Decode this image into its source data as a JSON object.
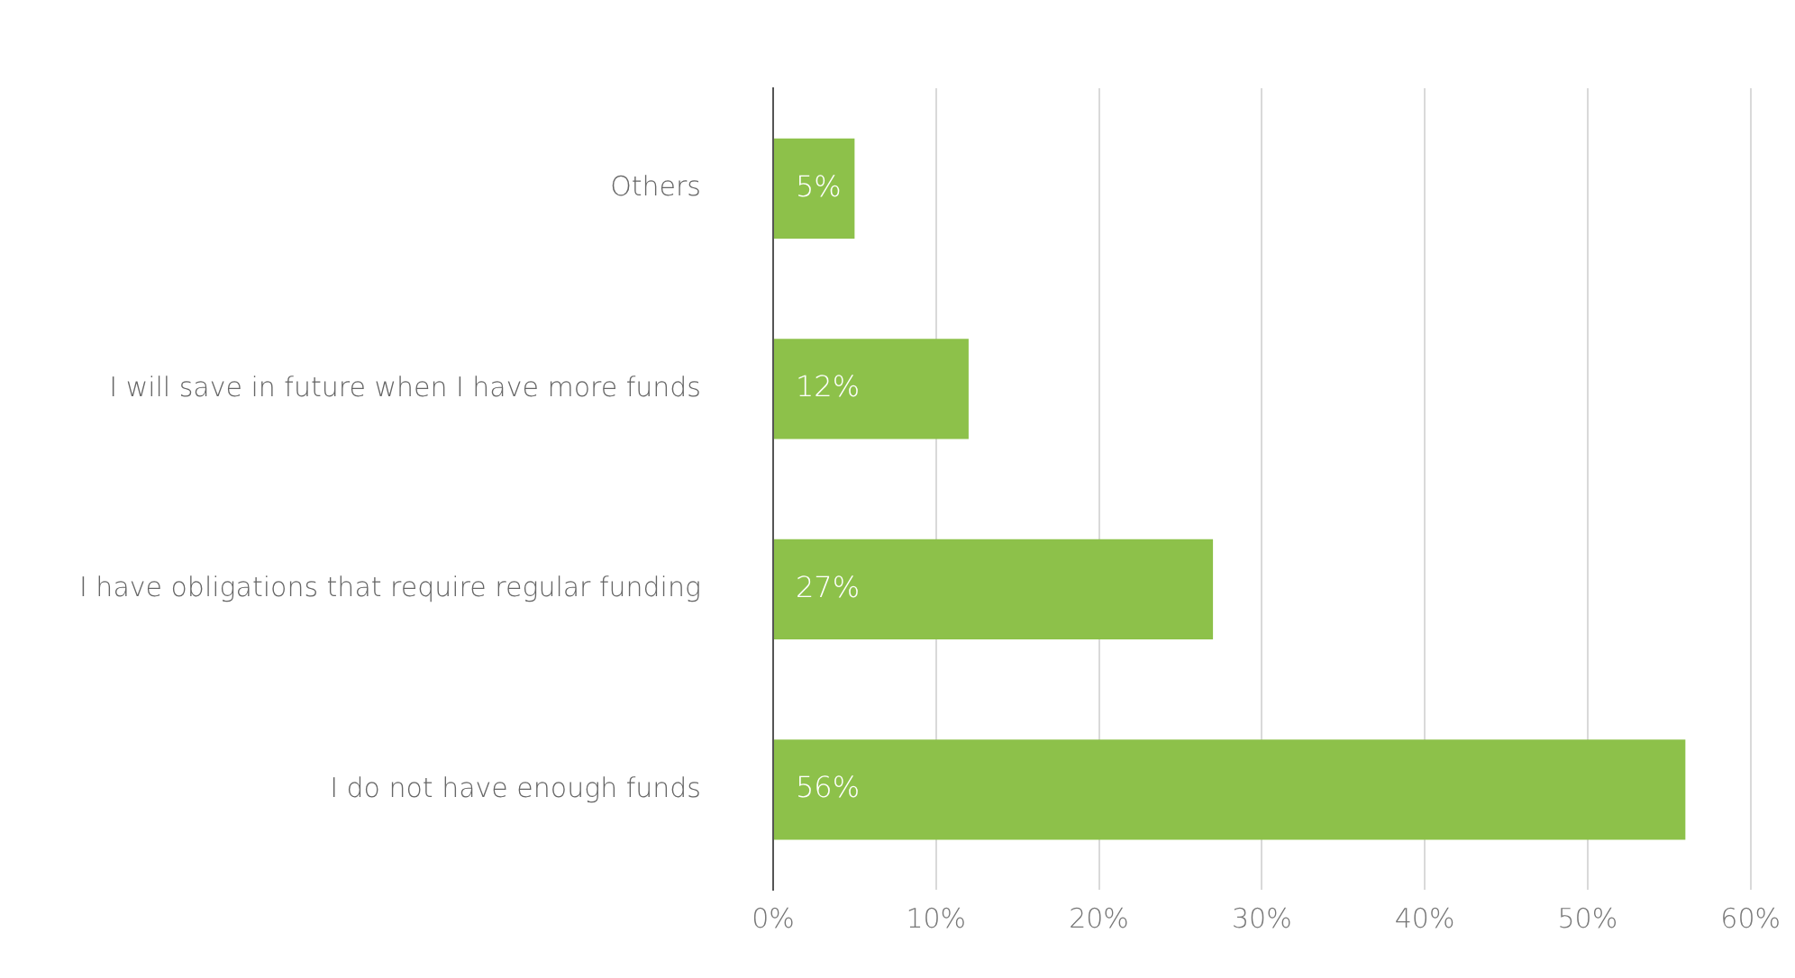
{
  "chart_data": {
    "type": "bar",
    "orientation": "horizontal",
    "categories": [
      "Others",
      "I will save in future when I have more funds",
      "I have obligations that require regular funding",
      "I do not have enough funds"
    ],
    "values": [
      5,
      12,
      27,
      56
    ],
    "color": "#8dc14a",
    "value_labels": [
      "5%",
      "12%",
      "27%",
      "56%"
    ],
    "xlim": [
      0,
      60
    ],
    "xticks": [
      {
        "value": 0,
        "label": "0%"
      },
      {
        "value": 10,
        "label": "10%"
      },
      {
        "value": 20,
        "label": "20%"
      },
      {
        "value": 30,
        "label": "30%"
      },
      {
        "value": 40,
        "label": "40%"
      },
      {
        "value": 50,
        "label": "50%"
      },
      {
        "value": 60,
        "label": "60%"
      }
    ],
    "grid": "x",
    "legend": false
  }
}
